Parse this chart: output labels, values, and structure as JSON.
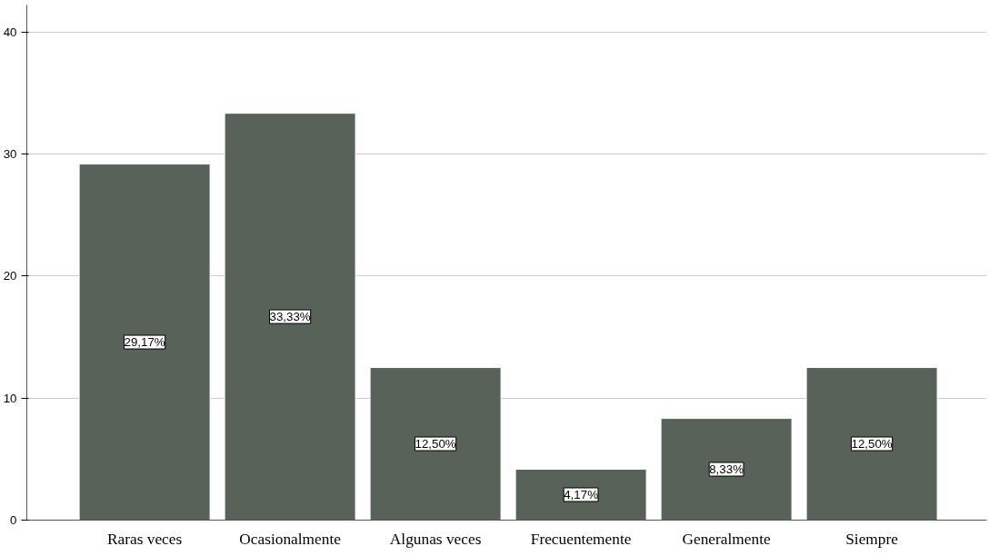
{
  "chart_data": {
    "type": "bar",
    "categories": [
      "Raras veces",
      "Ocasionalmente",
      "Algunas veces",
      "Frecuentemente",
      "Generalmente",
      "Siempre"
    ],
    "values": [
      29.17,
      33.33,
      12.5,
      4.17,
      8.33,
      12.5
    ],
    "value_labels": [
      "29,17%",
      "33,33%",
      "12,50%",
      "4,17%",
      "8,33%",
      "12,50%"
    ],
    "color": "#596259",
    "ylim": [
      0,
      42.2
    ],
    "yticks": [
      0,
      10,
      20,
      30,
      40
    ],
    "grid": "y"
  }
}
